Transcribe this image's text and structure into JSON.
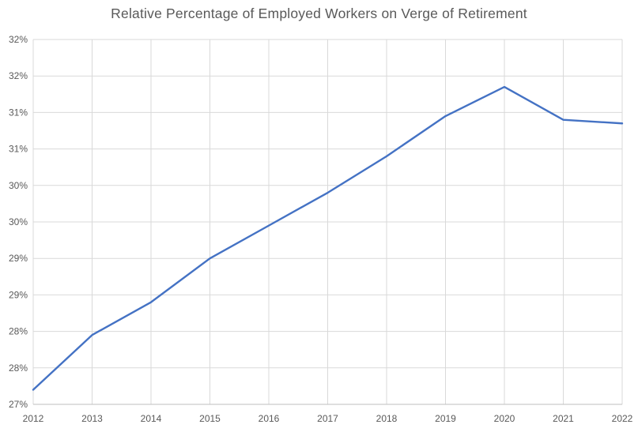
{
  "colors": {
    "line": "#4472C4",
    "grid": "#D9D9D9",
    "axis": "#BFBFBF",
    "tick_text": "#595959",
    "title_text": "#595959",
    "background": "#FFFFFF"
  },
  "chart_data": {
    "type": "line",
    "title": "Relative Percentage of Employed Workers on Verge of Retirement",
    "categories": [
      "2012",
      "2013",
      "2014",
      "2015",
      "2016",
      "2017",
      "2018",
      "2019",
      "2020",
      "2021",
      "2022"
    ],
    "values": [
      27.2,
      27.95,
      28.4,
      29.0,
      29.45,
      29.9,
      30.4,
      30.95,
      31.35,
      30.9,
      30.85
    ],
    "xlabel": "",
    "ylabel": "",
    "ylim": [
      27,
      32
    ],
    "ytick_step": 0.5,
    "yticks": [
      {
        "value": 27.0,
        "label": "27%"
      },
      {
        "value": 27.5,
        "label": "28%"
      },
      {
        "value": 28.0,
        "label": "28%"
      },
      {
        "value": 28.5,
        "label": "29%"
      },
      {
        "value": 29.0,
        "label": "29%"
      },
      {
        "value": 29.5,
        "label": "30%"
      },
      {
        "value": 30.0,
        "label": "30%"
      },
      {
        "value": 30.5,
        "label": "31%"
      },
      {
        "value": 31.0,
        "label": "31%"
      },
      {
        "value": 31.5,
        "label": "32%"
      },
      {
        "value": 32.0,
        "label": "32%"
      }
    ],
    "grid": true,
    "legend": "none"
  }
}
